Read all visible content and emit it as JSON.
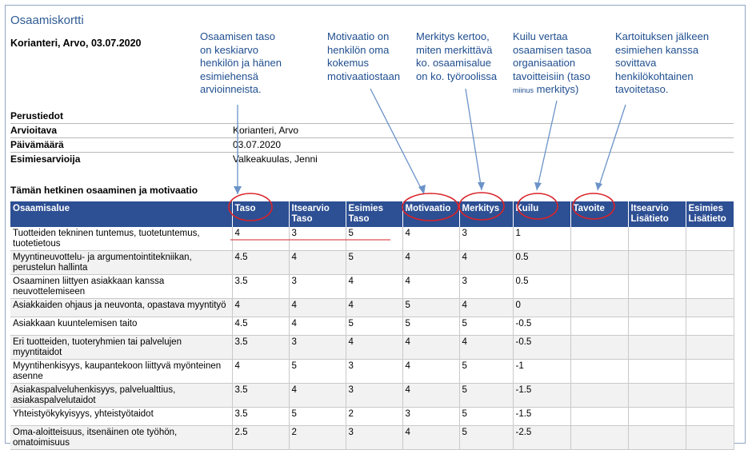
{
  "header": {
    "title": "Osaamiskortti",
    "person_line": "Korianteri, Arvo, 03.07.2020"
  },
  "annotations": {
    "taso": [
      "Osaamisen taso",
      "on keskiarvo",
      "henkilön ja hänen",
      "esimiehensä",
      "arvioinneista."
    ],
    "motivaatio": [
      "Motivaatio on",
      "henkilön oma",
      "kokemus",
      "motivaatiostaan"
    ],
    "merkitys": [
      "Merkitys kertoo,",
      "miten merkittävä",
      "ko. osaamisalue",
      "on ko. työroolissa"
    ],
    "kuilu": [
      "Kuilu  vertaa",
      "osaamisen tasoa",
      "organisaation",
      "tavoitteisiin (taso"
    ],
    "kuilu_small": "miinus",
    "kuilu_end": " merkitys)",
    "tavoite": [
      "Kartoituksen jälkeen",
      "esimiehen kanssa",
      "sovittava",
      "henkilökohtainen",
      "tavoitetaso."
    ]
  },
  "basic": {
    "section_title": "Perustiedot",
    "rows": [
      {
        "label": "Arvioitava",
        "value": "Korianteri, Arvo"
      },
      {
        "label": "Päivämäärä",
        "value": "03.07.2020"
      },
      {
        "label": "Esimiesarvioija",
        "value": "Valkeakuulas, Jenni"
      }
    ]
  },
  "competence": {
    "section_title": "Tämän hetkinen osaaminen ja motivaatio",
    "headers": [
      {
        "l1": "Osaamisalue",
        "l2": ""
      },
      {
        "l1": "Taso",
        "l2": ""
      },
      {
        "l1": "Itsearvio",
        "l2": "Taso"
      },
      {
        "l1": "Esimies",
        "l2": "Taso"
      },
      {
        "l1": "Motivaatio",
        "l2": ""
      },
      {
        "l1": "Merkitys",
        "l2": ""
      },
      {
        "l1": "Kuilu",
        "l2": ""
      },
      {
        "l1": "Tavoite",
        "l2": ""
      },
      {
        "l1": "Itsearvio",
        "l2": "Lisätieto"
      },
      {
        "l1": "Esimies",
        "l2": "Lisätieto"
      }
    ],
    "rows": [
      [
        "Tuotteiden tekninen tuntemus, tuotetuntemus, tuotetietous",
        "4",
        "3",
        "5",
        "4",
        "3",
        "1",
        "",
        "",
        ""
      ],
      [
        "Myyntineuvottelu- ja argumentointitekniikan, perustelun hallinta",
        "4.5",
        "4",
        "5",
        "4",
        "4",
        "0.5",
        "",
        "",
        ""
      ],
      [
        "Osaaminen liittyen asiakkaan kanssa neuvottelemiseen",
        "3.5",
        "3",
        "4",
        "4",
        "3",
        "0.5",
        "",
        "",
        ""
      ],
      [
        "Asiakkaiden ohjaus ja neuvonta, opastava myyntityö",
        "4",
        "4",
        "4",
        "5",
        "4",
        "0",
        "",
        "",
        ""
      ],
      [
        "Asiakkaan kuuntelemisen taito",
        "4.5",
        "4",
        "5",
        "5",
        "5",
        "-0.5",
        "",
        "",
        ""
      ],
      [
        "Eri tuotteiden, tuoteryhmien tai palvelujen myyntitaidot",
        "3.5",
        "3",
        "4",
        "4",
        "4",
        "-0.5",
        "",
        "",
        ""
      ],
      [
        "Myyntihenkisyys, kaupantekoon liittyvä myönteinen asenne",
        "4",
        "5",
        "3",
        "4",
        "5",
        "-1",
        "",
        "",
        ""
      ],
      [
        "Asiakaspalveluhenkisyys, palvelualttius, asiakaspalvelutaidot",
        "3.5",
        "4",
        "3",
        "4",
        "5",
        "-1.5",
        "",
        "",
        ""
      ],
      [
        "Yhteistyökykyisyys, yhteistyötaidot",
        "3.5",
        "5",
        "2",
        "3",
        "5",
        "-1.5",
        "",
        "",
        ""
      ],
      [
        "Oma-aloitteisuus, itsenäinen ote työhön, omatoimisuus",
        "2.5",
        "2",
        "3",
        "4",
        "5",
        "-2.5",
        "",
        "",
        ""
      ]
    ]
  },
  "colors": {
    "header_bg": "#2d4f93",
    "annotation_text": "#1f4e8f",
    "circle": "#d9232a",
    "arrow": "#6b93c8"
  }
}
